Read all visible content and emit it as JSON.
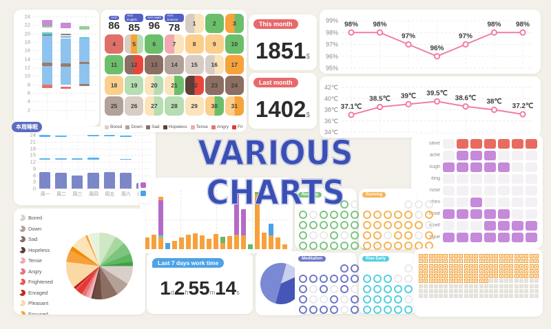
{
  "title": {
    "text": "VARIOUS CHARTS",
    "color": "#3b50b4"
  },
  "chart_data": [
    {
      "id": "sleep_stack",
      "type": "bar",
      "stacked": true,
      "yticks": [
        "24",
        "22",
        "20",
        "18",
        "16",
        "14",
        "12",
        "10",
        "8",
        "6",
        "4",
        "2"
      ],
      "ymin": 0,
      "ymax": 24,
      "palette": {
        "blue": "#8fc3ef",
        "brown": "#9b7b6b",
        "red": "#e4716b",
        "teal": "#4ecfe0",
        "green": "#97d099",
        "purple": "#c88bd6"
      },
      "bars": [
        [
          [
            7.2,
            7.9,
            "red"
          ],
          [
            8.0,
            12.4,
            "blue"
          ],
          [
            12.4,
            13.1,
            "brown"
          ],
          [
            13.2,
            19.4,
            "blue"
          ],
          [
            19.5,
            19.8,
            "brown"
          ],
          [
            19.8,
            20.2,
            "teal"
          ],
          [
            21.4,
            21.8,
            "green"
          ],
          [
            21.8,
            23.2,
            "purple"
          ]
        ],
        [
          [
            7.0,
            7.4,
            "red"
          ],
          [
            8.0,
            12.2,
            "blue"
          ],
          [
            12.2,
            12.9,
            "brown"
          ],
          [
            12.9,
            18.8,
            "blue"
          ],
          [
            18.9,
            19.5,
            "blue"
          ],
          [
            19.6,
            20.0,
            "brown"
          ],
          [
            21.2,
            22.6,
            "purple"
          ]
        ],
        [
          [
            7.7,
            8.1,
            "brown"
          ],
          [
            8.1,
            12.8,
            "blue"
          ],
          [
            12.8,
            13.3,
            "brown"
          ],
          [
            13.3,
            18.8,
            "blue"
          ],
          [
            18.8,
            19.2,
            "teal"
          ],
          [
            20.9,
            21.8,
            "green"
          ]
        ]
      ]
    },
    {
      "id": "week_sleep",
      "type": "bar",
      "badge": "本周睡眠",
      "yticks": [
        "24",
        "21",
        "18",
        "15",
        "12",
        "9",
        "6",
        "3",
        "0"
      ],
      "ymin": 0,
      "ymax": 24,
      "categories": [
        "周一",
        "周二",
        "周三",
        "周四",
        "周五",
        "周六",
        "周日"
      ],
      "values": [
        7.5,
        7.0,
        6.0,
        7.0,
        7.5,
        7.0,
        2.5
      ],
      "bar_color": "#7b87c9",
      "float_color": "#5ab4f0",
      "floats": [
        [
          0,
          13.0,
          13.5
        ],
        [
          0,
          23.2,
          23.9
        ],
        [
          1,
          13.0,
          13.4
        ],
        [
          1,
          23.1,
          23.7
        ],
        [
          2,
          13.0,
          13.4
        ],
        [
          3,
          12.8,
          13.7
        ],
        [
          3,
          23.5,
          24.0
        ],
        [
          4,
          23.7,
          24.0
        ],
        [
          5,
          12.9,
          13.3
        ],
        [
          5,
          23.0,
          23.6
        ]
      ]
    },
    {
      "id": "mood_calendar",
      "type": "heatmap",
      "stats": [
        {
          "badge": "AVG",
          "value": "86"
        },
        {
          "badge": "AVG English",
          "value": "85"
        },
        {
          "badge": "AVG Math",
          "value": "96"
        },
        {
          "badge": "AVG Science",
          "value": "78"
        }
      ],
      "palette": {
        "be": "#d8cdc5",
        "cr": "#fbe4bb",
        "pe": "#fbcf8b",
        "or": "#f7a33c",
        "lg": "#b7ddb2",
        "gr": "#6cbf6a",
        "ro": "#df7069",
        "pk": "#eeaab0",
        "br": "#8d6e63",
        "db": "#5d4037",
        "ta": "#b2a198",
        "rd": "#e8483b"
      },
      "days": [
        {
          "n": "1",
          "colors": [
            "be",
            "cr"
          ]
        },
        {
          "n": "2",
          "colors": [
            "gr"
          ]
        },
        {
          "n": "3",
          "colors": [
            "or",
            "gr"
          ]
        },
        {
          "n": "4",
          "colors": [
            "ro"
          ]
        },
        {
          "n": "5",
          "colors": [
            "be",
            "or",
            "lg"
          ]
        },
        {
          "n": "6",
          "colors": [
            "gr"
          ]
        },
        {
          "n": "7",
          "colors": [
            "pk",
            "cr"
          ]
        },
        {
          "n": "8",
          "colors": [
            "pe"
          ]
        },
        {
          "n": "9",
          "colors": [
            "pe"
          ]
        },
        {
          "n": "10",
          "colors": [
            "gr"
          ]
        },
        {
          "n": "11",
          "colors": [
            "gr"
          ]
        },
        {
          "n": "12",
          "colors": [
            "br",
            "rd"
          ]
        },
        {
          "n": "13",
          "colors": [
            "br"
          ]
        },
        {
          "n": "14",
          "colors": [
            "ta"
          ]
        },
        {
          "n": "15",
          "colors": [
            "be"
          ]
        },
        {
          "n": "16",
          "colors": [
            "be",
            "cr"
          ]
        },
        {
          "n": "17",
          "colors": [
            "or"
          ]
        },
        {
          "n": "18",
          "colors": [
            "pe"
          ]
        },
        {
          "n": "19",
          "colors": [
            "lg"
          ]
        },
        {
          "n": "20",
          "colors": [
            "cr",
            "lg"
          ]
        },
        {
          "n": "21",
          "colors": [
            "cr",
            "gr"
          ]
        },
        {
          "n": "22",
          "colors": [
            "db",
            "rd"
          ]
        },
        {
          "n": "23",
          "colors": [
            "br"
          ]
        },
        {
          "n": "24",
          "colors": [
            "br"
          ]
        },
        {
          "n": "25",
          "colors": [
            "ta"
          ]
        },
        {
          "n": "26",
          "colors": [
            "be"
          ]
        },
        {
          "n": "27",
          "colors": [
            "cr",
            "lg"
          ]
        },
        {
          "n": "28",
          "colors": [
            "lg"
          ]
        },
        {
          "n": "29",
          "colors": [
            "cr"
          ]
        },
        {
          "n": "30",
          "colors": [
            "pe",
            "gr"
          ]
        },
        {
          "n": "31",
          "colors": [
            "pe",
            "or"
          ]
        }
      ],
      "legend": [
        {
          "label": "Bored",
          "color": "#d9cfc9"
        },
        {
          "label": "Down",
          "color": "#b3a197"
        },
        {
          "label": "Sad",
          "color": "#8d6e63"
        },
        {
          "label": "Hopeless",
          "color": "#5d4037"
        },
        {
          "label": "Tense",
          "color": "#eeaab0"
        },
        {
          "label": "Angry",
          "color": "#e57373"
        },
        {
          "label": "Fri",
          "color": "#e53935"
        }
      ]
    },
    {
      "id": "this_month",
      "type": "stat",
      "label": "This month",
      "value": "1851",
      "unit": "$"
    },
    {
      "id": "last_month",
      "type": "stat",
      "label": "Last month",
      "value": "1402",
      "unit": "$"
    },
    {
      "id": "attendance",
      "type": "line",
      "color": "#f27ba3",
      "yticks": [
        "99%",
        "98%",
        "97%",
        "96%",
        "95%"
      ],
      "ymin": 95,
      "ymax": 99,
      "values": [
        98,
        98,
        97,
        96,
        97,
        98,
        98
      ],
      "labels": [
        "98%",
        "98%",
        "97%",
        "96%",
        "97%",
        "98%",
        "98%"
      ]
    },
    {
      "id": "temperature",
      "type": "line",
      "color": "#f27ba3",
      "yticks": [
        "42℃",
        "40℃",
        "38℃",
        "36℃",
        "34℃"
      ],
      "ymin": 34,
      "ymax": 42,
      "values": [
        37.1,
        38.5,
        39,
        39.5,
        38.6,
        38,
        37.2
      ],
      "labels": [
        "37.1℃",
        "38.5℃",
        "39℃",
        "39.5℃",
        "38.6℃",
        "38℃",
        "37.2℃"
      ]
    },
    {
      "id": "symptoms",
      "type": "heatmap",
      "row_labels": [
        "sitive",
        "ache",
        "ough",
        "iting",
        "nose",
        "ches",
        "hroat",
        "smell",
        "tigue"
      ],
      "rows": [
        ".rrrrrr",
        ".ppp...",
        "ppppp..",
        ".......",
        ".......",
        "..p....",
        "ppppp..",
        "...pppp",
        "ppppppp"
      ],
      "palette": {
        "r": "#e96a5f",
        "p": "#c58ad9",
        ".": "#f3f1f3"
      }
    },
    {
      "id": "hourly",
      "type": "bar",
      "stacked": true,
      "palette": {
        "o": "#f6a13c",
        "p": "#b569c8",
        "b": "#4aa3ea",
        "g": "#67b868",
        "t": "#4dd0e1"
      },
      "legend_colors": [
        "#b569c8",
        "#4aa3ea"
      ],
      "bars": [
        [
          [
            "o",
            0.2
          ]
        ],
        [
          [
            "o",
            0.25
          ]
        ],
        [
          [
            "o",
            0.2
          ],
          [
            "t",
            0.03
          ],
          [
            "p",
            0.6
          ],
          [
            "o",
            0.05
          ]
        ],
        [
          [
            "b",
            0.1
          ]
        ],
        [
          [
            "o",
            0.14
          ]
        ],
        [
          [
            "o",
            0.2
          ]
        ],
        [
          [
            "o",
            0.25
          ]
        ],
        [
          [
            "o",
            0.27
          ]
        ],
        [
          [
            "o",
            0.23
          ]
        ],
        [
          [
            "o",
            0.18
          ]
        ],
        [
          [
            "o",
            0.26
          ]
        ],
        [
          [
            "o",
            0.11
          ],
          [
            "g",
            0.1
          ]
        ],
        [
          [
            "o",
            0.22
          ]
        ],
        [
          [
            "o",
            0.24
          ],
          [
            "p",
            0.72
          ]
        ],
        [
          [
            "o",
            0.23
          ],
          [
            "p",
            0.45
          ]
        ],
        [
          [
            "g",
            0.08
          ]
        ],
        [
          [
            "o",
            0.93
          ],
          [
            "g",
            0.03
          ]
        ],
        [
          [
            "o",
            0.28
          ]
        ],
        [
          [
            "o",
            0.23
          ],
          [
            "b",
            0.2
          ]
        ],
        [
          [
            "o",
            0.2
          ]
        ],
        [
          [
            "o",
            0.08
          ]
        ]
      ]
    },
    {
      "id": "emotions",
      "type": "pie",
      "legend": [
        {
          "label": "Bored",
          "color": "#d9cfc9"
        },
        {
          "label": "Down",
          "color": "#b3a197"
        },
        {
          "label": "Sad",
          "color": "#8d6e63"
        },
        {
          "label": "Hopeless",
          "color": "#5d4037"
        },
        {
          "label": "Tense",
          "color": "#eeaab0"
        },
        {
          "label": "Angry",
          "color": "#e57373"
        },
        {
          "label": "Frightened",
          "color": "#ef5350"
        },
        {
          "label": "Enraged",
          "color": "#c62828"
        },
        {
          "label": "Pleasant",
          "color": "#fbd9a5"
        },
        {
          "label": "Focused",
          "color": "#f6a13c"
        }
      ],
      "slices": [
        [
          "#cfe8c3",
          8
        ],
        [
          "#a8d8a0",
          5
        ],
        [
          "#7cc47f",
          6
        ],
        [
          "#5cb85f",
          4
        ],
        [
          "#3f9e46",
          2
        ],
        [
          "#d9cfc9",
          9
        ],
        [
          "#b3a197",
          7
        ],
        [
          "#8d6e63",
          8
        ],
        [
          "#6d4c41",
          4
        ],
        [
          "#5d4037",
          1
        ],
        [
          "#f5b8bd",
          1.5
        ],
        [
          "#ee9aa2",
          1.5
        ],
        [
          "#e57373",
          2
        ],
        [
          "#e53935",
          3
        ],
        [
          "#ef5350",
          1
        ],
        [
          "#b71c1c",
          1
        ],
        [
          "#fbd9a5",
          13
        ],
        [
          "#f6a13c",
          6
        ],
        [
          "#ef8d00",
          2
        ],
        [
          "#fbe3ba",
          8
        ],
        [
          "#f6a13c",
          1
        ],
        [
          "#fff3d6",
          1
        ],
        [
          "#e4f3dd",
          5
        ]
      ]
    },
    {
      "id": "worktime",
      "type": "stat",
      "badge": "Last 7 days work time",
      "parts": [
        {
          "v": "1",
          "u": "d"
        },
        {
          "v": "2",
          "u": "h"
        },
        {
          "v": "55",
          "u": "m"
        },
        {
          "v": "14",
          "u": "s"
        }
      ]
    },
    {
      "id": "work_pie",
      "type": "pie",
      "rotation": 15,
      "slices": [
        [
          "#c9cfec",
          14
        ],
        [
          "#4656b8",
          36
        ],
        [
          "#7b89d4",
          50
        ]
      ]
    },
    {
      "id": "habits",
      "type": "heatmap",
      "items": [
        {
          "badge": "Reading",
          "color": "#7cc47f",
          "rows": [
            "100",
            "1011111",
            "1111110",
            "1001011",
            "1111111"
          ]
        },
        {
          "badge": "Running",
          "color": "#f6b352",
          "rows": [
            "000",
            "1111101",
            "1111110",
            "1101101",
            "1111111"
          ]
        },
        {
          "badge": "Meditation",
          "color": "#6d78c7",
          "rows": [
            "111",
            "1111110",
            "1010100",
            "1001011",
            "1111011"
          ]
        },
        {
          "badge": "Rise Early",
          "color": "#53cfe0",
          "rows": [
            "010",
            "1110011",
            "1111101",
            "1111010",
            "1111111"
          ]
        }
      ]
    },
    {
      "id": "waffle",
      "type": "heatmap",
      "cols": 24,
      "rows": 9,
      "filled": 134,
      "on_color": "#f5a83f",
      "off_color": "#e4e2db"
    }
  ]
}
